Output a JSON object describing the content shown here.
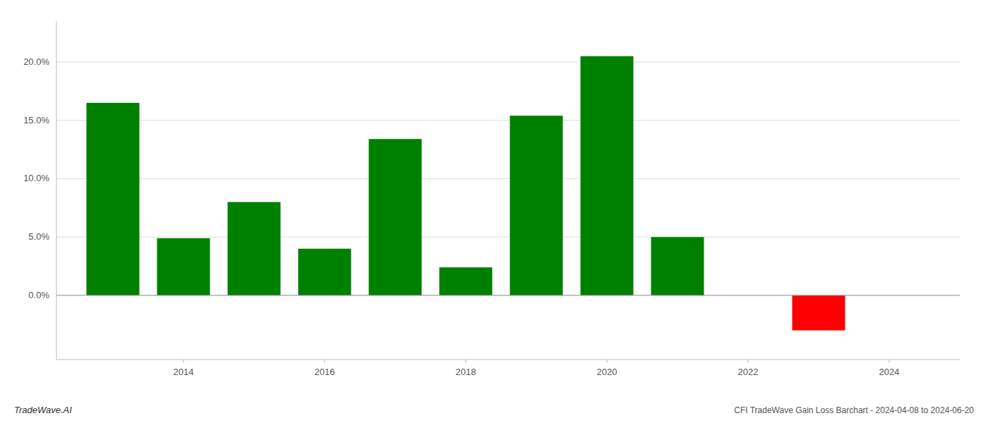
{
  "chart_data": {
    "type": "bar",
    "x": [
      2013,
      2014,
      2015,
      2016,
      2017,
      2018,
      2019,
      2020,
      2021,
      2023
    ],
    "values": [
      0.165,
      0.049,
      0.08,
      0.04,
      0.134,
      0.024,
      0.154,
      0.205,
      0.05,
      -0.03
    ],
    "colors": [
      "#008000",
      "#008000",
      "#008000",
      "#008000",
      "#008000",
      "#008000",
      "#008000",
      "#008000",
      "#008000",
      "#ff0000"
    ],
    "xlim": [
      2012.2,
      2025.0
    ],
    "xticks": [
      2014,
      2016,
      2018,
      2020,
      2022,
      2024
    ],
    "ylim": [
      -0.055,
      0.235
    ],
    "yticks": [
      {
        "value": 0.0,
        "label": "0.0%"
      },
      {
        "value": 0.05,
        "label": "5.0%"
      },
      {
        "value": 0.1,
        "label": "10.0%"
      },
      {
        "value": 0.15,
        "label": "15.0%"
      },
      {
        "value": 0.2,
        "label": "20.0%"
      }
    ],
    "grid": true,
    "annotations": [
      "TradeWave.AI",
      "CFI TradeWave Gain Loss Barchart - 2024-04-08 to 2024-06-20"
    ]
  }
}
